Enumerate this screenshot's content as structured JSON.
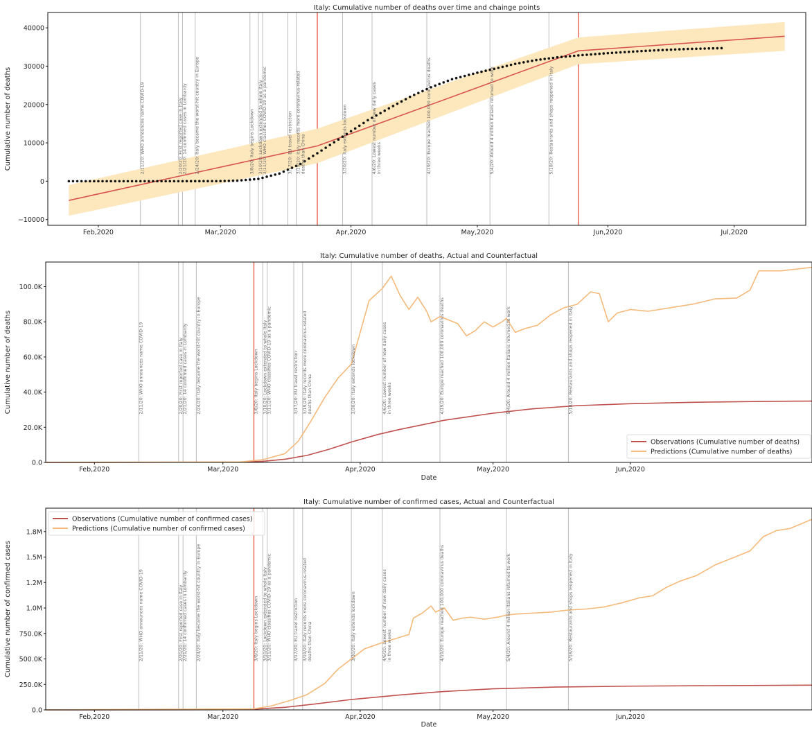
{
  "events": [
    {
      "date": "2020-02-11",
      "label": "2/11/20: WHO announces name COVID-19"
    },
    {
      "date": "2020-02-20",
      "label": "2/20/20: First reported case in Italy"
    },
    {
      "date": "2020-02-21",
      "label": "2/21/20: 14 confirmed cases in Lombardy"
    },
    {
      "date": "2020-02-24",
      "label": "2/24/20: Italy became the worst-hit country in Europe"
    },
    {
      "date": "2020-03-08",
      "label": "3/8/20: Italy begins Lockdown"
    },
    {
      "date": "2020-03-10",
      "label": "3/10/20: Lockdown extended to whole Italy"
    },
    {
      "date": "2020-03-11",
      "label": "3/11/20: WHO classifies COVID-19 as a pandemic"
    },
    {
      "date": "2020-03-17",
      "label": "3/17/20: EU travel restriction"
    },
    {
      "date": "2020-03-19",
      "label": "3/19/20: Italy records more coronavirus-related",
      "label2": "deaths than China"
    },
    {
      "date": "2020-03-30",
      "label": "3/30/20: Italy extends lockdown"
    },
    {
      "date": "2020-04-06",
      "label": "4/6/20: Lowest number of new daily cases",
      "label2": "in three weeks"
    },
    {
      "date": "2020-04-19",
      "label": "4/19/20: Europe reached 100,000 coronavirus deaths"
    },
    {
      "date": "2020-05-04",
      "label": "5/4/20: Around 4 million Italians returned to work"
    },
    {
      "date": "2020-05-18",
      "label": "5/18/20: Restaurants and shops reopened in Italy"
    }
  ],
  "chart_data": [
    {
      "type": "line",
      "title": "Italy: Cumulative number of deaths over time and chainge points",
      "xlabel": "",
      "ylabel": "Cumulative number of deaths",
      "xlim": [
        "2020-01-20",
        "2020-07-18"
      ],
      "ylim": [
        -11500,
        44000
      ],
      "y_ticks": [
        -10000,
        0,
        10000,
        20000,
        30000,
        40000
      ],
      "y_tick_labels": [
        "−10000",
        "0",
        "10000",
        "20000",
        "30000",
        "40000"
      ],
      "x_ticks": [
        "2020-02-01",
        "2020-03-01",
        "2020-04-01",
        "2020-05-01",
        "2020-06-01",
        "2020-07-01"
      ],
      "x_tick_labels": [
        "Feb,2020",
        "Mar,2020",
        "Apr,2020",
        "May,2020",
        "Jun,2020",
        "Jul,2020"
      ],
      "change_points": [
        "2020-03-24",
        "2020-05-25"
      ],
      "series": [
        {
          "kind": "fit",
          "color": "#d9534f",
          "x": [
            "2020-01-25",
            "2020-03-24",
            "2020-05-25",
            "2020-07-13"
          ],
          "values": [
            -5000,
            9200,
            34000,
            37800
          ]
        },
        {
          "kind": "band",
          "color": "#fde7bd",
          "x": [
            "2020-01-25",
            "2020-03-24",
            "2020-05-25",
            "2020-07-13"
          ],
          "upper": [
            -1000,
            13700,
            37500,
            41500
          ],
          "lower": [
            -9000,
            4700,
            30500,
            34000
          ]
        },
        {
          "kind": "observed",
          "color": "#111111",
          "x": [
            "2020-01-25",
            "2020-02-20",
            "2020-03-01",
            "2020-03-05",
            "2020-03-10",
            "2020-03-15",
            "2020-03-20",
            "2020-03-25",
            "2020-03-30",
            "2020-04-05",
            "2020-04-10",
            "2020-04-15",
            "2020-04-20",
            "2020-04-25",
            "2020-05-01",
            "2020-05-05",
            "2020-05-10",
            "2020-05-15",
            "2020-05-20",
            "2020-05-25",
            "2020-06-01",
            "2020-06-10",
            "2020-06-20",
            "2020-06-28"
          ],
          "values": [
            0,
            0,
            30,
            150,
            600,
            2000,
            4500,
            8000,
            11600,
            15900,
            19000,
            22000,
            24500,
            26600,
            28300,
            29300,
            30600,
            31600,
            32300,
            32800,
            33400,
            34000,
            34500,
            34700
          ]
        }
      ]
    },
    {
      "type": "line",
      "title": "Italy: Cumulative number of deaths, Actual and Counterfactual",
      "xlabel": "Date",
      "ylabel": "Cumulative number of deaths",
      "xlim": [
        "2020-01-21",
        "2020-07-12"
      ],
      "ylim": [
        0,
        114000
      ],
      "y_ticks": [
        0,
        20000,
        40000,
        60000,
        80000,
        100000
      ],
      "y_tick_labels": [
        "0.0",
        "20.0K",
        "40.0K",
        "60.0K",
        "80.0K",
        "100.0K"
      ],
      "x_ticks": [
        "2020-02-01",
        "2020-03-01",
        "2020-04-01",
        "2020-05-01",
        "2020-06-01"
      ],
      "x_tick_labels": [
        "Feb,2020",
        "Mar,2020",
        "Apr,2020",
        "May,2020",
        "Jun,2020"
      ],
      "change_points": [
        "2020-03-08"
      ],
      "legend_position": "lower-right",
      "series": [
        {
          "name": "Observations (Cumulative number of deaths)",
          "color": "#c0504d",
          "x": [
            "2020-01-21",
            "2020-03-05",
            "2020-03-10",
            "2020-03-15",
            "2020-03-20",
            "2020-03-25",
            "2020-03-30",
            "2020-04-05",
            "2020-04-10",
            "2020-04-20",
            "2020-05-01",
            "2020-05-10",
            "2020-05-20",
            "2020-06-01",
            "2020-06-15",
            "2020-07-01",
            "2020-07-12"
          ],
          "values": [
            0,
            150,
            600,
            1800,
            4000,
            7500,
            11600,
            15900,
            18800,
            24000,
            28000,
            30500,
            32300,
            33400,
            34200,
            34700,
            34900
          ]
        },
        {
          "name": "Predictions (Cumulative number of deaths)",
          "color": "#f5b97a",
          "x": [
            "2020-01-21",
            "2020-03-05",
            "2020-03-10",
            "2020-03-15",
            "2020-03-18",
            "2020-03-21",
            "2020-03-24",
            "2020-03-27",
            "2020-03-30",
            "2020-04-01",
            "2020-04-03",
            "2020-04-06",
            "2020-04-08",
            "2020-04-10",
            "2020-04-12",
            "2020-04-14",
            "2020-04-16",
            "2020-04-17",
            "2020-04-19",
            "2020-04-21",
            "2020-04-23",
            "2020-04-25",
            "2020-04-27",
            "2020-04-29",
            "2020-05-01",
            "2020-05-03",
            "2020-05-04",
            "2020-05-06",
            "2020-05-08",
            "2020-05-11",
            "2020-05-14",
            "2020-05-17",
            "2020-05-20",
            "2020-05-23",
            "2020-05-25",
            "2020-05-27",
            "2020-05-29",
            "2020-06-01",
            "2020-06-05",
            "2020-06-10",
            "2020-06-15",
            "2020-06-20",
            "2020-06-25",
            "2020-06-28",
            "2020-06-30",
            "2020-07-05",
            "2020-07-12"
          ],
          "values": [
            0,
            300,
            1500,
            5000,
            12000,
            24000,
            37000,
            48000,
            56000,
            74000,
            92000,
            99000,
            106000,
            95000,
            87000,
            94000,
            86000,
            80000,
            83000,
            81000,
            79000,
            72000,
            75000,
            80000,
            77000,
            80000,
            82000,
            74000,
            76000,
            78000,
            84000,
            88000,
            90000,
            97000,
            96000,
            80000,
            85000,
            87000,
            86000,
            88000,
            90000,
            93000,
            93500,
            98000,
            109000,
            109000,
            111000
          ]
        }
      ]
    },
    {
      "type": "line",
      "title": "Italy: Cumulative number of confirmed cases, Actual and Counterfactual",
      "xlabel": "Date",
      "ylabel": "Cumulative number of confirmed cases",
      "xlim": [
        "2020-01-21",
        "2020-07-12"
      ],
      "ylim": [
        0,
        1980000
      ],
      "y_ticks": [
        0,
        250000,
        500000,
        750000,
        1000000,
        1250000,
        1500000,
        1750000
      ],
      "y_tick_labels": [
        "0.0",
        "250.0K",
        "500.0K",
        "750.0K",
        "1.0M",
        "1.2M",
        "1.5M",
        "1.8M"
      ],
      "x_ticks": [
        "2020-02-01",
        "2020-03-01",
        "2020-04-01",
        "2020-05-01",
        "2020-06-01"
      ],
      "x_tick_labels": [
        "Feb,2020",
        "Mar,2020",
        "Apr,2020",
        "May,2020",
        "Jun,2020"
      ],
      "change_points": [
        "2020-03-08"
      ],
      "legend_position": "upper-left",
      "series": [
        {
          "name": "Observations (Cumulative number of confirmed cases)",
          "color": "#c0504d",
          "x": [
            "2020-01-21",
            "2020-03-01",
            "2020-03-08",
            "2020-03-15",
            "2020-03-22",
            "2020-03-30",
            "2020-04-10",
            "2020-04-20",
            "2020-05-01",
            "2020-05-15",
            "2020-06-01",
            "2020-06-20",
            "2020-07-12"
          ],
          "values": [
            0,
            1700,
            7400,
            25000,
            59000,
            102000,
            147000,
            181000,
            207000,
            224000,
            233000,
            238000,
            243000
          ]
        },
        {
          "name": "Predictions (Cumulative number of confirmed cases)",
          "color": "#f5b97a",
          "x": [
            "2020-01-21",
            "2020-03-08",
            "2020-03-12",
            "2020-03-16",
            "2020-03-20",
            "2020-03-24",
            "2020-03-27",
            "2020-03-30",
            "2020-04-02",
            "2020-04-06",
            "2020-04-09",
            "2020-04-12",
            "2020-04-13",
            "2020-04-15",
            "2020-04-17",
            "2020-04-18",
            "2020-04-20",
            "2020-04-22",
            "2020-04-24",
            "2020-04-26",
            "2020-04-29",
            "2020-05-02",
            "2020-05-04",
            "2020-05-06",
            "2020-05-10",
            "2020-05-14",
            "2020-05-18",
            "2020-05-22",
            "2020-05-26",
            "2020-05-30",
            "2020-06-03",
            "2020-06-06",
            "2020-06-09",
            "2020-06-12",
            "2020-06-16",
            "2020-06-20",
            "2020-06-24",
            "2020-06-28",
            "2020-07-01",
            "2020-07-04",
            "2020-07-07",
            "2020-07-12"
          ],
          "values": [
            0,
            10000,
            40000,
            90000,
            150000,
            260000,
            400000,
            500000,
            600000,
            660000,
            700000,
            740000,
            900000,
            950000,
            1020000,
            960000,
            1000000,
            880000,
            900000,
            910000,
            890000,
            910000,
            930000,
            940000,
            950000,
            960000,
            980000,
            990000,
            1010000,
            1050000,
            1100000,
            1120000,
            1200000,
            1260000,
            1320000,
            1420000,
            1490000,
            1560000,
            1700000,
            1760000,
            1780000,
            1870000
          ]
        }
      ]
    }
  ]
}
